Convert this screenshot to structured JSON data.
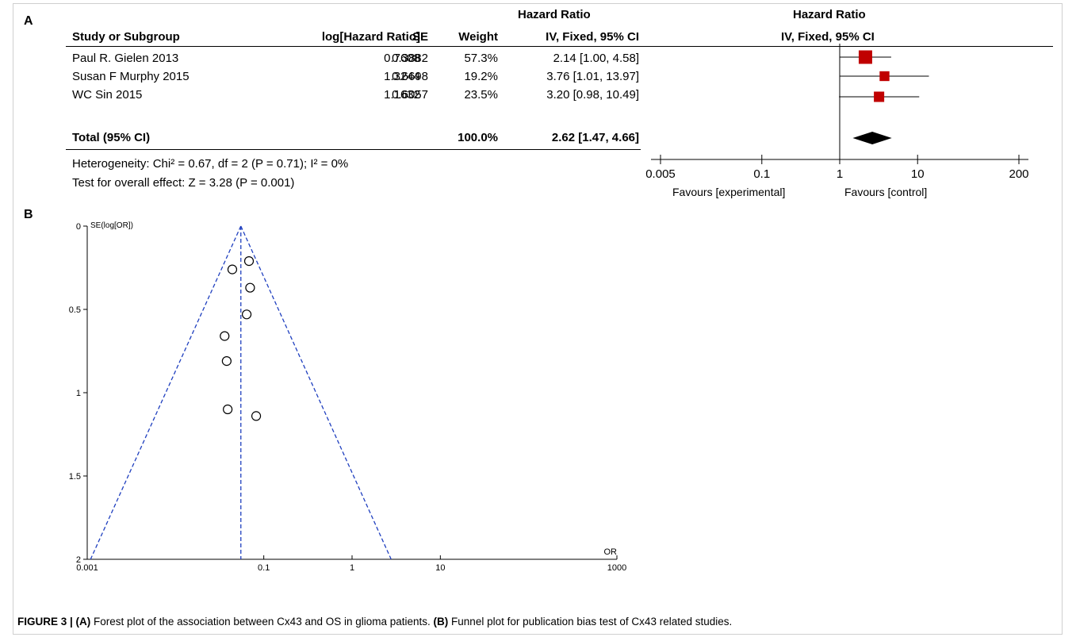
{
  "panel_a_label": "A",
  "panel_b_label": "B",
  "forest": {
    "header_group": "Hazard Ratio",
    "header_group_plot": "Hazard Ratio",
    "columns": [
      "Study or Subgroup",
      "log[Hazard Ratio]",
      "SE",
      "Weight",
      "IV, Fixed, 95% CI"
    ],
    "plot_header": "IV, Fixed, 95% CI",
    "rows": [
      {
        "study": "Paul R. Gielen 2013",
        "loghr": "0.7608",
        "se": "0.3882",
        "weight": "57.3%",
        "ci": "2.14 [1.00, 4.58]"
      },
      {
        "study": "Susan F Murphy 2015",
        "loghr": "1.3244",
        "se": "0.6698",
        "weight": "19.2%",
        "ci": "3.76 [1.01, 13.97]"
      },
      {
        "study": "WC Sin 2015",
        "loghr": "1.1632",
        "se": "0.6057",
        "weight": "23.5%",
        "ci": "3.20 [0.98, 10.49]"
      }
    ],
    "total": {
      "label": "Total (95% CI)",
      "weight": "100.0%",
      "ci": "2.62 [1.47, 4.66]"
    },
    "heterogeneity": "Heterogeneity: Chi² = 0.67, df = 2 (P = 0.71); I² = 0%",
    "overall_effect": "Test for overall effect: Z = 3.28 (P = 0.001)",
    "favours_left": "Favours [experimental]",
    "favours_right": "Favours [control]"
  },
  "caption": {
    "fig": "FIGURE 3 | ",
    "a_tag": "(A)",
    "a_text": " Forest plot of the association between Cx43 and OS in glioma patients. ",
    "b_tag": "(B)",
    "b_text": " Funnel plot for publication bias test of Cx43 related studies."
  },
  "chart_data": [
    {
      "type": "forest",
      "title": "Hazard Ratio",
      "scale": "log",
      "x_ticks": [
        0.005,
        0.1,
        1,
        10,
        200
      ],
      "x_tick_labels": [
        "0.005",
        "0.1",
        "1",
        "10",
        "200"
      ],
      "xlim": [
        0.005,
        200
      ],
      "reference_line": 1,
      "studies": [
        {
          "name": "Paul R. Gielen 2013",
          "hr": 2.14,
          "lower": 1.0,
          "upper": 4.58,
          "weight": 57.3
        },
        {
          "name": "Susan F Murphy 2015",
          "hr": 3.76,
          "lower": 1.01,
          "upper": 13.97,
          "weight": 19.2
        },
        {
          "name": "WC Sin 2015",
          "hr": 3.2,
          "lower": 0.98,
          "upper": 10.49,
          "weight": 23.5
        }
      ],
      "pooled": {
        "hr": 2.62,
        "lower": 1.47,
        "upper": 4.66
      },
      "colors": {
        "box": "#c00000",
        "diamond": "#000000"
      }
    },
    {
      "type": "scatter",
      "ylabel": "SE(log[OR])",
      "xlabel": "OR",
      "x_scale": "log",
      "y_inverted": true,
      "xlim": [
        0.001,
        1000
      ],
      "ylim": [
        0,
        2
      ],
      "x_ticks": [
        0.001,
        0.1,
        1,
        10,
        1000
      ],
      "x_tick_labels": [
        "0.001",
        "0.1",
        "1",
        "10",
        "1000"
      ],
      "y_ticks": [
        0,
        0.5,
        1,
        1.5,
        2
      ],
      "y_tick_labels": [
        "0",
        "0.5",
        "1",
        "1.5",
        "2"
      ],
      "pooled_or": 0.055,
      "points": [
        {
          "x": 0.068,
          "y": 0.21
        },
        {
          "x": 0.044,
          "y": 0.26
        },
        {
          "x": 0.07,
          "y": 0.37
        },
        {
          "x": 0.064,
          "y": 0.53
        },
        {
          "x": 0.036,
          "y": 0.66
        },
        {
          "x": 0.038,
          "y": 0.81
        },
        {
          "x": 0.039,
          "y": 1.1
        },
        {
          "x": 0.082,
          "y": 1.14
        }
      ],
      "colors": {
        "funnel": "#1f3fbf",
        "points": "#000000"
      }
    }
  ]
}
